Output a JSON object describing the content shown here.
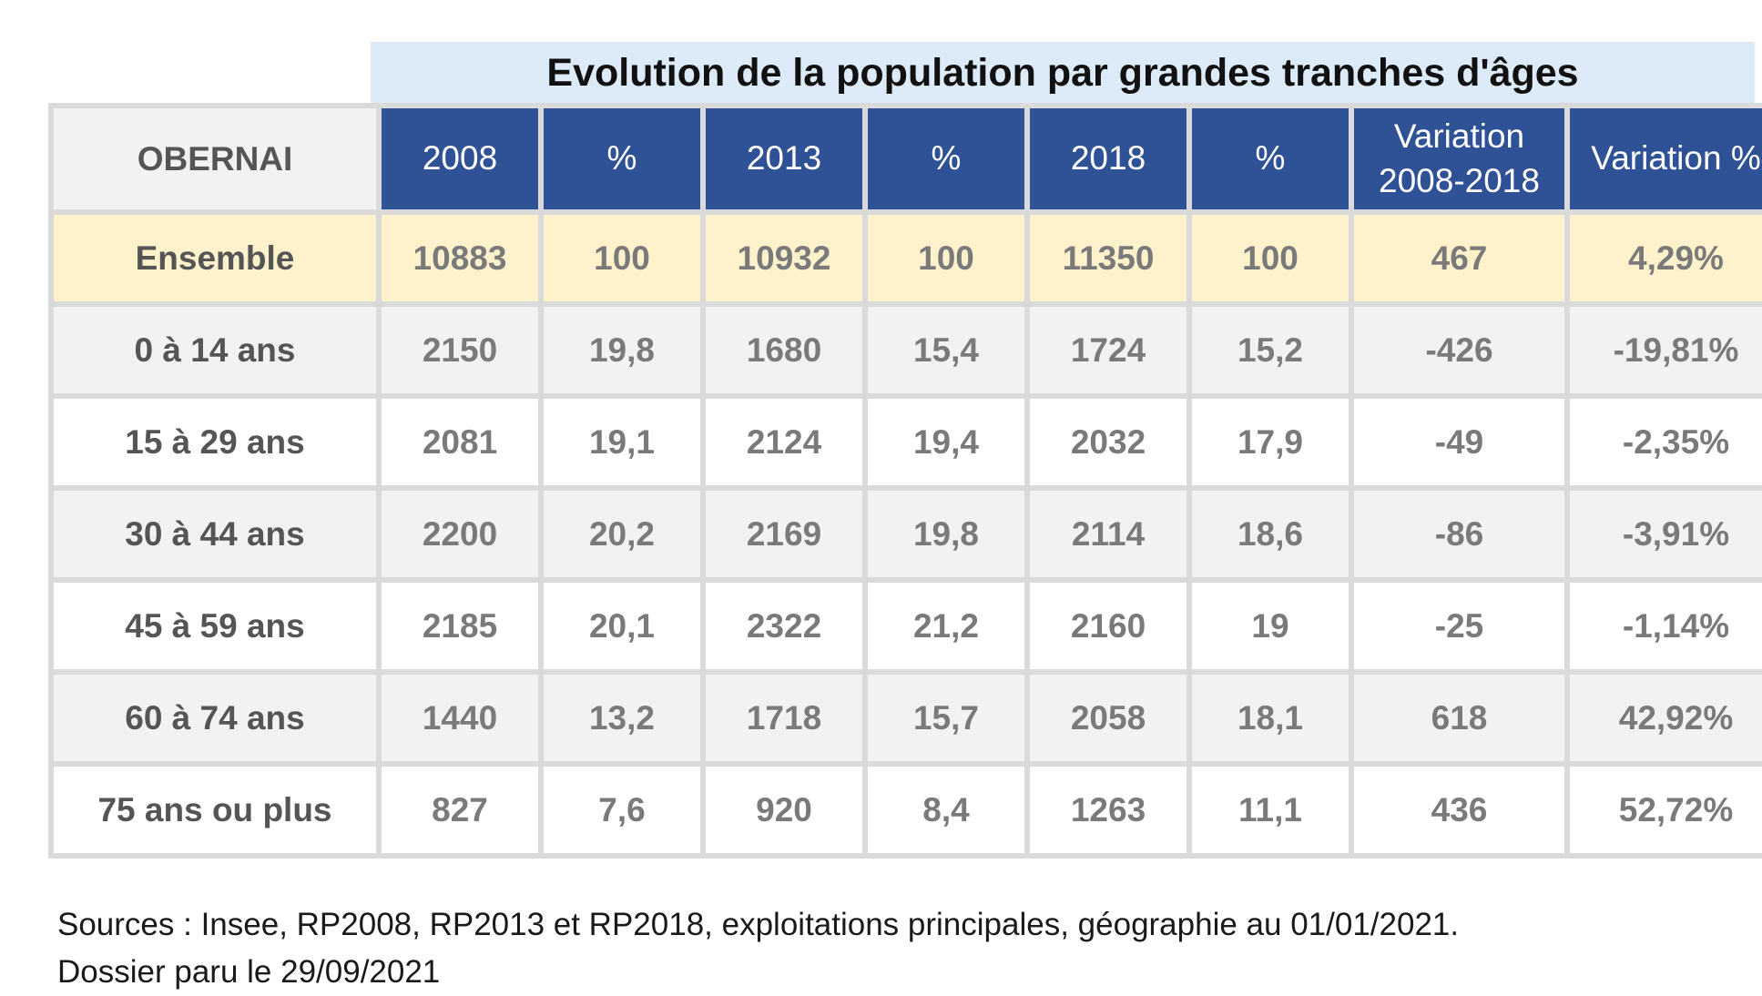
{
  "title": "Evolution de la population par grandes tranches d'âges",
  "table": {
    "corner_label": "OBERNAI",
    "headers": [
      "2008",
      "%",
      "2013",
      "%",
      "2018",
      "%",
      "Variation 2008-2018",
      "Variation %"
    ],
    "header_variation_line1": "Variation",
    "header_variation_line2": "2008-2018",
    "rows": [
      {
        "label": "Ensemble",
        "cells": [
          "10883",
          "100",
          "10932",
          "100",
          "11350",
          "100",
          "467",
          "4,29%"
        ]
      },
      {
        "label": "0 à 14 ans",
        "cells": [
          "2150",
          "19,8",
          "1680",
          "15,4",
          "1724",
          "15,2",
          "-426",
          "-19,81%"
        ]
      },
      {
        "label": "15 à 29 ans",
        "cells": [
          "2081",
          "19,1",
          "2124",
          "19,4",
          "2032",
          "17,9",
          "-49",
          "-2,35%"
        ]
      },
      {
        "label": "30 à 44 ans",
        "cells": [
          "2200",
          "20,2",
          "2169",
          "19,8",
          "2114",
          "18,6",
          "-86",
          "-3,91%"
        ]
      },
      {
        "label": "45 à 59 ans",
        "cells": [
          "2185",
          "20,1",
          "2322",
          "21,2",
          "2160",
          "19",
          "-25",
          "-1,14%"
        ]
      },
      {
        "label": "60 à 74 ans",
        "cells": [
          "1440",
          "13,2",
          "1718",
          "15,7",
          "2058",
          "18,1",
          "618",
          "42,92%"
        ]
      },
      {
        "label": "75 ans ou plus",
        "cells": [
          "827",
          "7,6",
          "920",
          "8,4",
          "1263",
          "11,1",
          "436",
          "52,72%"
        ]
      }
    ]
  },
  "footer": {
    "sources": "Sources : Insee, RP2008, RP2013 et RP2018, exploitations principales, géographie au 01/01/2021.",
    "dossier": "Dossier paru le 29/09/2021"
  },
  "colors": {
    "header_bg": "#2f5196",
    "title_band_bg": "#dcebf7",
    "ensemble_row_bg": "#fef2cc",
    "alt_row_bg": "#f2f2f2"
  }
}
